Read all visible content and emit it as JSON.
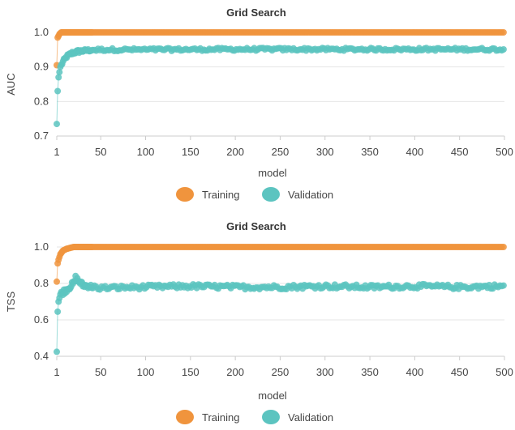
{
  "chart_data": [
    {
      "type": "scatter",
      "title": "Grid Search",
      "xlabel": "model",
      "ylabel": "AUC",
      "xlim": [
        1,
        500
      ],
      "ylim": [
        0.7,
        1.0
      ],
      "xticks": [
        "1",
        "50",
        "100",
        "150",
        "200",
        "250",
        "300",
        "350",
        "400",
        "450",
        "500"
      ],
      "yticks": [
        "0.7",
        "0.8",
        "0.9",
        "1.0"
      ],
      "grid": true,
      "legend_position": "bottom-center",
      "series": [
        {
          "name": "Training",
          "color": "#f0943d",
          "points": [
            [
              1,
              0.905
            ],
            [
              2,
              0.985
            ],
            [
              3,
              0.99
            ],
            [
              4,
              0.995
            ],
            [
              6,
              1.0
            ],
            [
              10,
              1.0
            ],
            [
              25,
              1.0
            ],
            [
              50,
              1.0
            ],
            [
              100,
              1.0
            ],
            [
              200,
              1.0
            ],
            [
              300,
              1.0
            ],
            [
              400,
              1.0
            ],
            [
              500,
              1.0
            ]
          ],
          "plateau_from_x": 8,
          "plateau_value": 1.0
        },
        {
          "name": "Validation",
          "color": "#5cc4c0",
          "points": [
            [
              1,
              0.735
            ],
            [
              2,
              0.83
            ],
            [
              3,
              0.87
            ],
            [
              5,
              0.9
            ],
            [
              8,
              0.915
            ],
            [
              12,
              0.93
            ],
            [
              18,
              0.94
            ],
            [
              25,
              0.945
            ],
            [
              35,
              0.948
            ],
            [
              50,
              0.95
            ],
            [
              100,
              0.95
            ],
            [
              200,
              0.951
            ],
            [
              300,
              0.951
            ],
            [
              400,
              0.951
            ],
            [
              500,
              0.951
            ]
          ],
          "plateau_value": 0.95,
          "plateau_jitter": 0.004
        }
      ]
    },
    {
      "type": "scatter",
      "title": "Grid Search",
      "xlabel": "model",
      "ylabel": "TSS",
      "xlim": [
        1,
        500
      ],
      "ylim": [
        0.4,
        1.0
      ],
      "xticks": [
        "1",
        "50",
        "100",
        "150",
        "200",
        "250",
        "300",
        "350",
        "400",
        "450",
        "500"
      ],
      "yticks": [
        "0.4",
        "0.6",
        "0.8",
        "1.0"
      ],
      "grid": true,
      "legend_position": "bottom-center",
      "series": [
        {
          "name": "Training",
          "color": "#f0943d",
          "points": [
            [
              1,
              0.81
            ],
            [
              2,
              0.91
            ],
            [
              3,
              0.93
            ],
            [
              5,
              0.96
            ],
            [
              8,
              0.98
            ],
            [
              12,
              0.99
            ],
            [
              20,
              1.0
            ],
            [
              50,
              1.0
            ],
            [
              100,
              1.0
            ],
            [
              200,
              1.0
            ],
            [
              300,
              1.0
            ],
            [
              400,
              1.0
            ],
            [
              500,
              1.0
            ]
          ],
          "plateau_from_x": 20,
          "plateau_value": 1.0
        },
        {
          "name": "Validation",
          "color": "#5cc4c0",
          "points": [
            [
              1,
              0.425
            ],
            [
              2,
              0.645
            ],
            [
              3,
              0.7
            ],
            [
              5,
              0.74
            ],
            [
              10,
              0.76
            ],
            [
              20,
              0.8
            ],
            [
              22,
              0.83
            ],
            [
              30,
              0.79
            ],
            [
              50,
              0.775
            ],
            [
              100,
              0.78
            ],
            [
              150,
              0.785
            ],
            [
              200,
              0.78
            ],
            [
              250,
              0.78
            ],
            [
              300,
              0.785
            ],
            [
              350,
              0.78
            ],
            [
              400,
              0.785
            ],
            [
              450,
              0.78
            ],
            [
              500,
              0.785
            ]
          ],
          "plateau_value": 0.78,
          "plateau_jitter": 0.012
        }
      ]
    }
  ]
}
